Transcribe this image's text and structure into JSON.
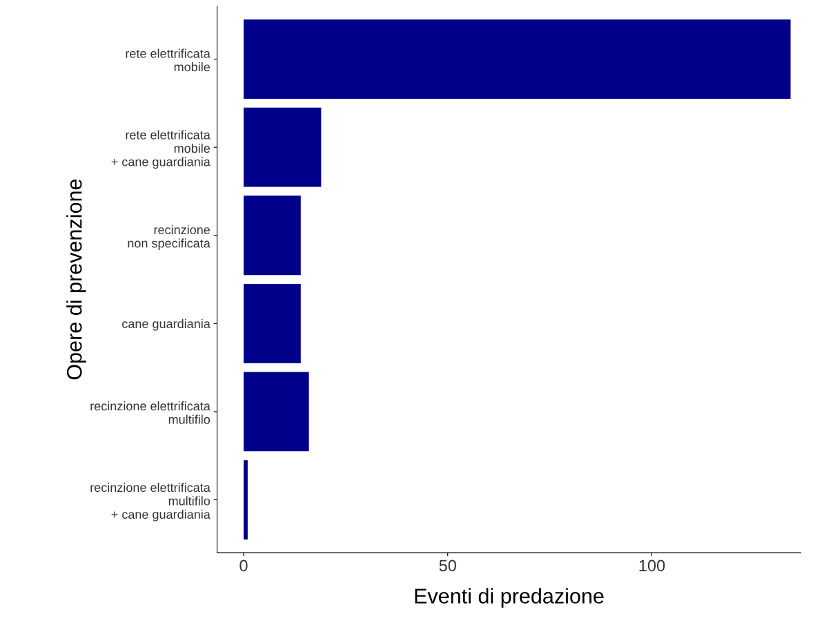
{
  "chart_data": {
    "type": "bar",
    "orientation": "horizontal",
    "xlabel": "Eventi di predazione",
    "ylabel": "Opere di prevenzione",
    "categories": [
      "rete elettrificata\nmobile",
      "rete elettrificata\nmobile\n+ cane guardiania",
      "recinzione\nnon specificata",
      "cane guardiania",
      "recinzione elettrificata\nmultifilo",
      "recinzione elettrificata\nmultifilo\n+ cane guardiania"
    ],
    "values": [
      134,
      19,
      14,
      14,
      16,
      1
    ],
    "color": "#00008b",
    "xlim": [
      -6.5,
      136.5
    ],
    "xticks": [
      0,
      50,
      100
    ],
    "grid": false,
    "legend": false
  }
}
